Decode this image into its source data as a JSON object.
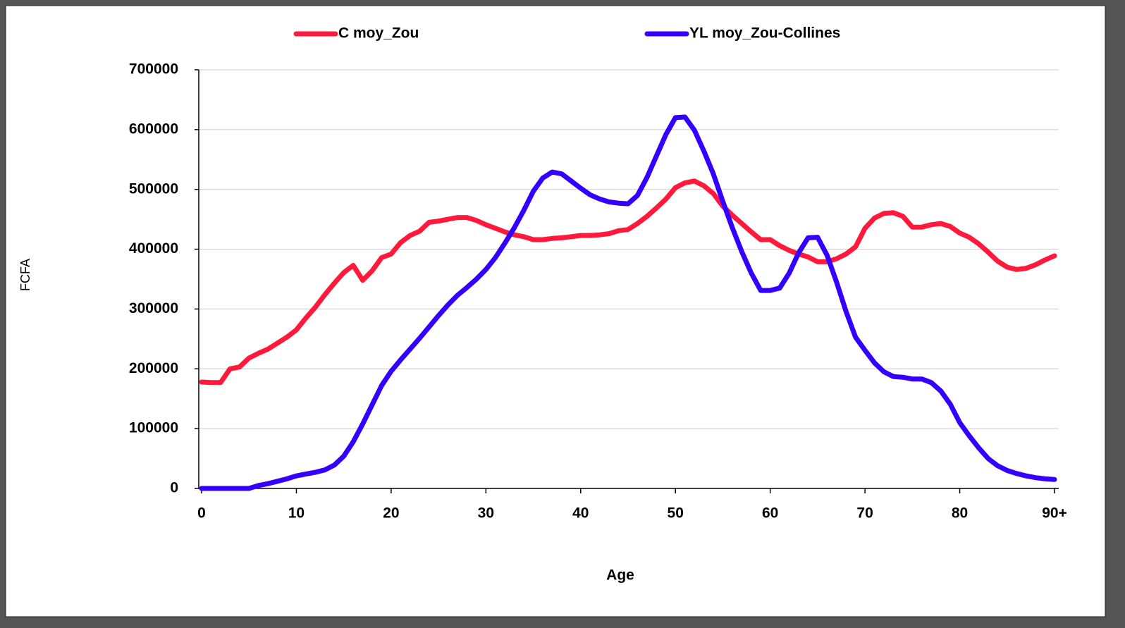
{
  "chart_data": {
    "type": "line",
    "x_label": "Age",
    "y_label": "FCFA",
    "x": [
      0,
      1,
      2,
      3,
      4,
      5,
      6,
      7,
      8,
      9,
      10,
      11,
      12,
      13,
      14,
      15,
      16,
      17,
      18,
      19,
      20,
      21,
      22,
      23,
      24,
      25,
      26,
      27,
      28,
      29,
      30,
      31,
      32,
      33,
      34,
      35,
      36,
      37,
      38,
      39,
      40,
      41,
      42,
      43,
      44,
      45,
      46,
      47,
      48,
      49,
      50,
      51,
      52,
      53,
      54,
      55,
      56,
      57,
      58,
      59,
      60,
      61,
      62,
      63,
      64,
      65,
      66,
      67,
      68,
      69,
      70,
      71,
      72,
      73,
      74,
      75,
      76,
      77,
      78,
      79,
      80,
      81,
      82,
      83,
      84,
      85,
      86,
      87,
      88,
      89,
      90
    ],
    "series": [
      {
        "name": "C moy_Zou",
        "color": "#ff1a3c",
        "values": [
          178000,
          177000,
          177000,
          200000,
          203000,
          218000,
          226000,
          233000,
          243000,
          253000,
          265000,
          285000,
          303000,
          324000,
          343000,
          361000,
          373000,
          348000,
          364000,
          386000,
          392000,
          411000,
          423000,
          430000,
          445000,
          447000,
          450000,
          453000,
          453000,
          448000,
          441000,
          435000,
          429000,
          424000,
          421000,
          416000,
          416000,
          418000,
          419000,
          421000,
          423000,
          423000,
          424000,
          426000,
          431000,
          433000,
          443000,
          455000,
          469000,
          484000,
          503000,
          511000,
          514000,
          506000,
          493000,
          472000,
          457000,
          443000,
          429000,
          416000,
          416000,
          406000,
          398000,
          392000,
          387000,
          379000,
          379000,
          384000,
          392000,
          404000,
          435000,
          452000,
          460000,
          461000,
          455000,
          437000,
          437000,
          441000,
          443000,
          438000,
          427000,
          420000,
          409000,
          395000,
          380000,
          370000,
          366000,
          368000,
          374000,
          382000,
          389000
        ]
      },
      {
        "name": "YL moy_Zou-Collines",
        "color": "#3300ff",
        "values": [
          0,
          0,
          0,
          0,
          0,
          0,
          5000,
          8000,
          12000,
          16000,
          21000,
          24000,
          27000,
          31000,
          39000,
          54000,
          78000,
          108000,
          140000,
          172000,
          196000,
          215000,
          233000,
          251000,
          270000,
          289000,
          307000,
          323000,
          336000,
          350000,
          366000,
          386000,
          410000,
          436000,
          465000,
          497000,
          519000,
          529000,
          526000,
          514000,
          502000,
          491000,
          484000,
          479000,
          477000,
          476000,
          490000,
          520000,
          556000,
          592000,
          620000,
          621000,
          599000,
          564000,
          526000,
          480000,
          436000,
          396000,
          360000,
          331000,
          331000,
          335000,
          360000,
          394000,
          419000,
          420000,
          390000,
          345000,
          296000,
          253000,
          231000,
          210000,
          195000,
          187000,
          186000,
          183000,
          183000,
          177000,
          163000,
          141000,
          110000,
          88000,
          68000,
          50000,
          38000,
          30000,
          25000,
          21000,
          18000,
          16000,
          15000
        ]
      }
    ],
    "xlim": [
      0,
      90
    ],
    "xticks": [
      0,
      10,
      20,
      30,
      40,
      50,
      60,
      70,
      80,
      {
        "value": 90,
        "label": "90+"
      }
    ],
    "ylim": [
      0,
      700000
    ],
    "yticks": [
      0,
      100000,
      200000,
      300000,
      400000,
      500000,
      600000,
      700000
    ],
    "grid": true,
    "legend": "top"
  }
}
